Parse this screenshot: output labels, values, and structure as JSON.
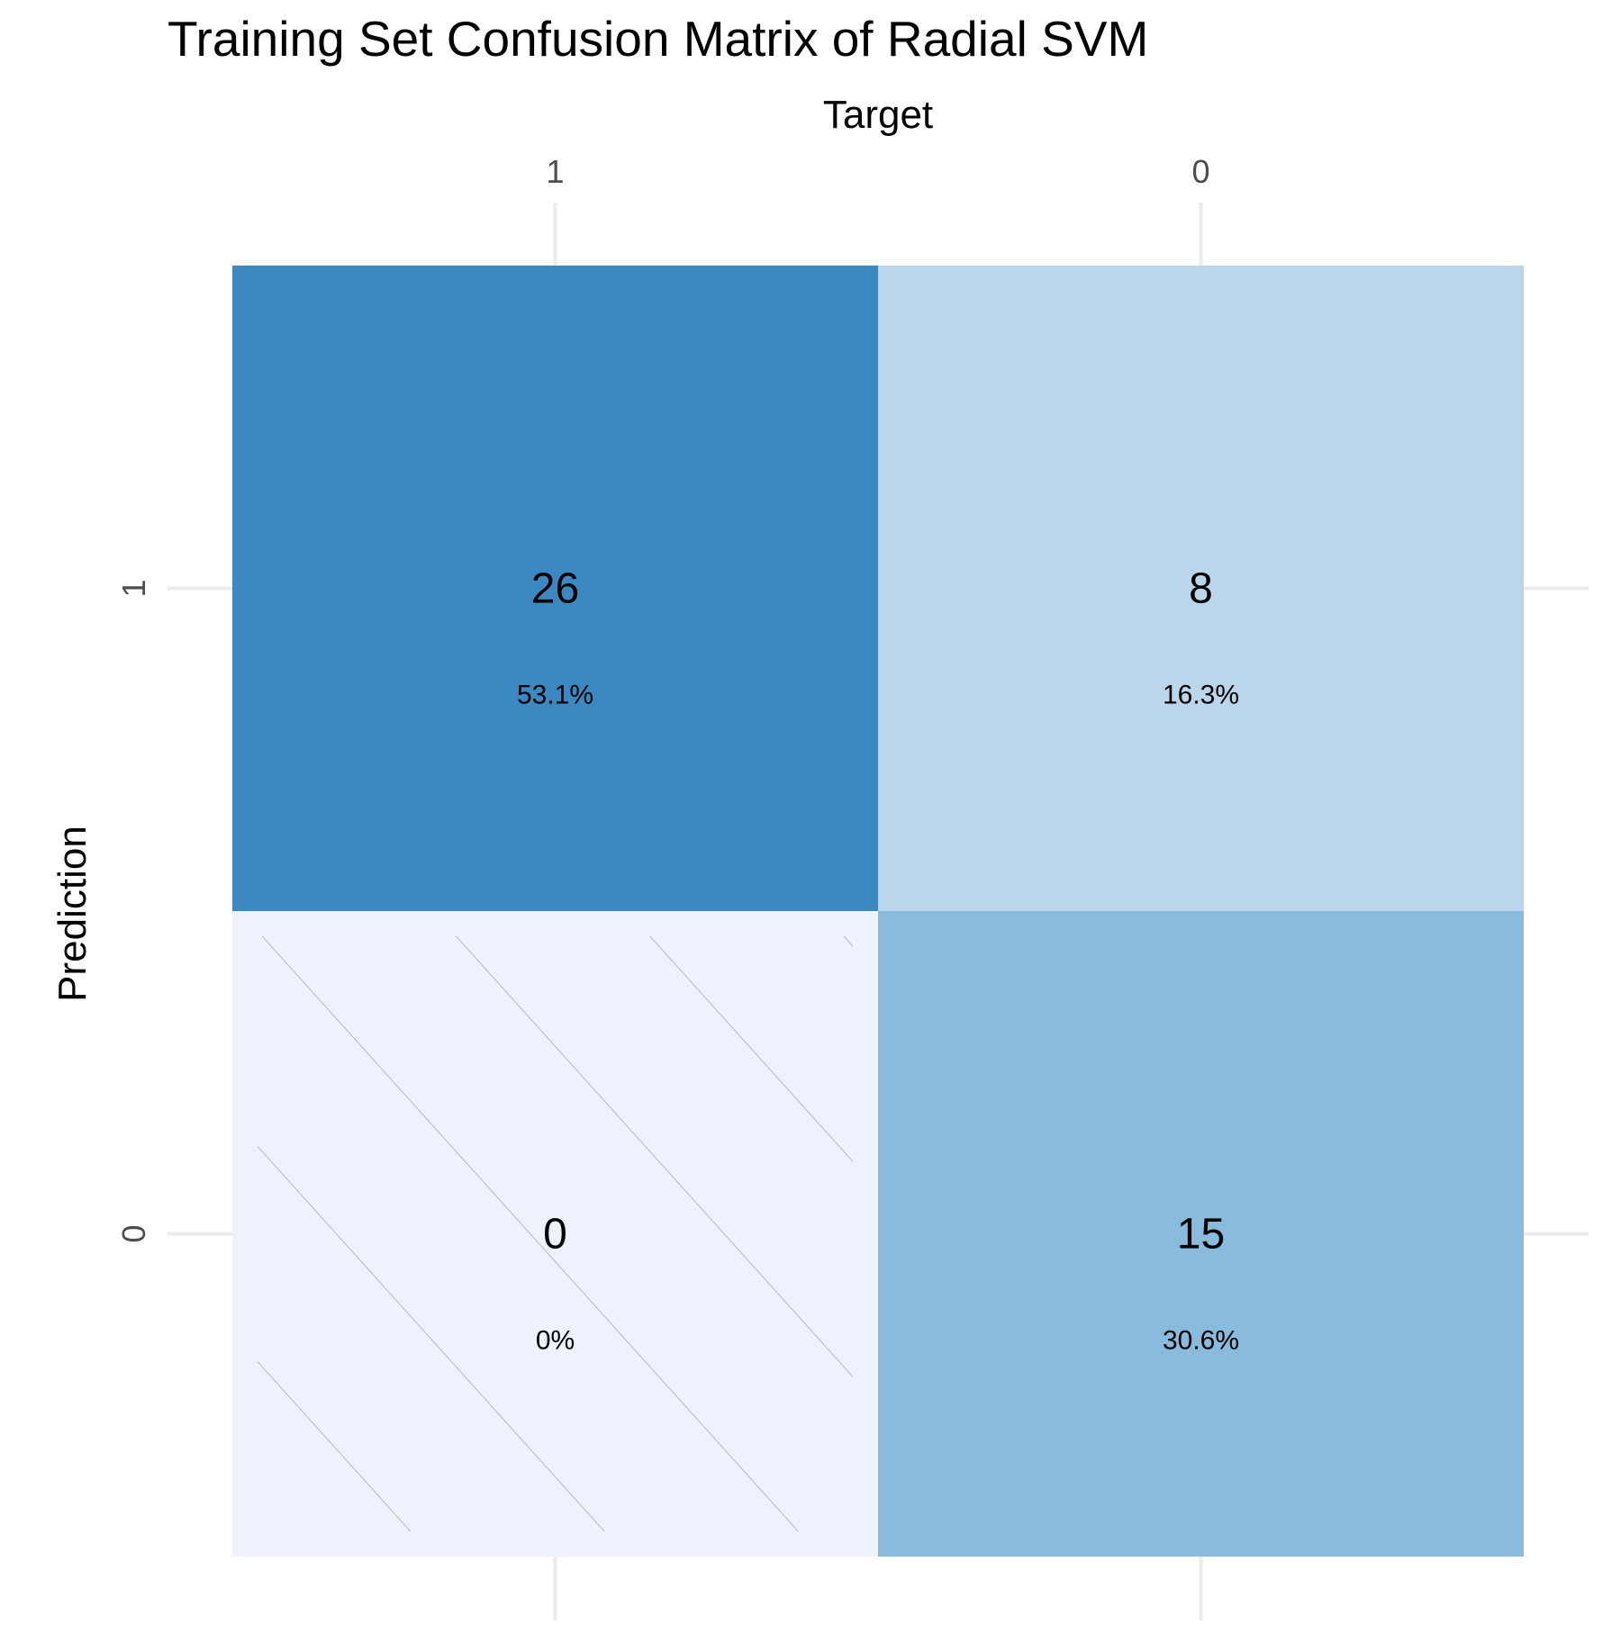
{
  "chart_data": {
    "type": "heatmap",
    "title": "Training Set Confusion Matrix of Radial SVM",
    "xlabel": "Target",
    "ylabel": "Prediction",
    "x_categories": [
      "1",
      "0"
    ],
    "y_categories": [
      "1",
      "0"
    ],
    "cells": [
      {
        "target": "1",
        "prediction": "1",
        "count": 26,
        "percent_label": "53.1%",
        "percent": 53.1,
        "color": "#3C89C1",
        "hatched": false
      },
      {
        "target": "0",
        "prediction": "1",
        "count": 8,
        "percent_label": "16.3%",
        "percent": 16.3,
        "color": "#BBD6EA",
        "hatched": false
      },
      {
        "target": "1",
        "prediction": "0",
        "count": 0,
        "percent_label": "0%",
        "percent": 0,
        "color": "#EEF2FC",
        "hatched": true
      },
      {
        "target": "0",
        "prediction": "0",
        "count": 15,
        "percent_label": "30.6%",
        "percent": 30.6,
        "color": "#88BBDC",
        "hatched": false
      }
    ],
    "grid": true,
    "x_axis_position": "top"
  }
}
